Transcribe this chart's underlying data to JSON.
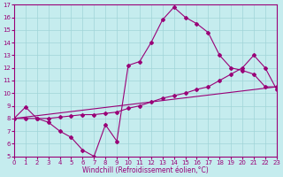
{
  "xlabel": "Windchill (Refroidissement éolien,°C)",
  "xlim": [
    0,
    23
  ],
  "ylim": [
    5,
    17
  ],
  "xticks": [
    0,
    1,
    2,
    3,
    4,
    5,
    6,
    7,
    8,
    9,
    10,
    11,
    12,
    13,
    14,
    15,
    16,
    17,
    18,
    19,
    20,
    21,
    22,
    23
  ],
  "yticks": [
    5,
    6,
    7,
    8,
    9,
    10,
    11,
    12,
    13,
    14,
    15,
    16,
    17
  ],
  "bg_color": "#c5ecee",
  "grid_color": "#a0d4d8",
  "line_color": "#990077",
  "curve1_x": [
    0,
    1,
    2,
    3,
    4,
    5,
    6,
    7,
    8,
    9,
    10,
    11,
    12,
    13,
    14,
    15,
    16,
    17,
    18,
    19,
    20,
    21,
    22,
    23
  ],
  "curve1_y": [
    8.0,
    8.9,
    8.0,
    7.7,
    7.0,
    6.5,
    5.5,
    5.0,
    7.5,
    6.2,
    12.2,
    12.5,
    14.0,
    15.8,
    16.8,
    16.0,
    15.5,
    14.8,
    13.0,
    12.0,
    11.8,
    11.5,
    10.5,
    10.5
  ],
  "curve2_x": [
    0,
    23
  ],
  "curve2_y": [
    8.0,
    10.5
  ],
  "curve3_x": [
    0,
    1,
    2,
    3,
    4,
    5,
    6,
    7,
    8,
    9,
    10,
    11,
    12,
    13,
    14,
    15,
    16,
    17,
    18,
    19,
    20,
    21,
    22,
    23
  ],
  "curve3_y": [
    8.0,
    8.0,
    8.0,
    8.0,
    8.1,
    8.2,
    8.3,
    8.3,
    8.4,
    8.5,
    8.8,
    9.0,
    9.3,
    9.6,
    9.8,
    10.0,
    10.3,
    10.5,
    11.0,
    11.5,
    12.0,
    13.0,
    12.0,
    10.3
  ]
}
